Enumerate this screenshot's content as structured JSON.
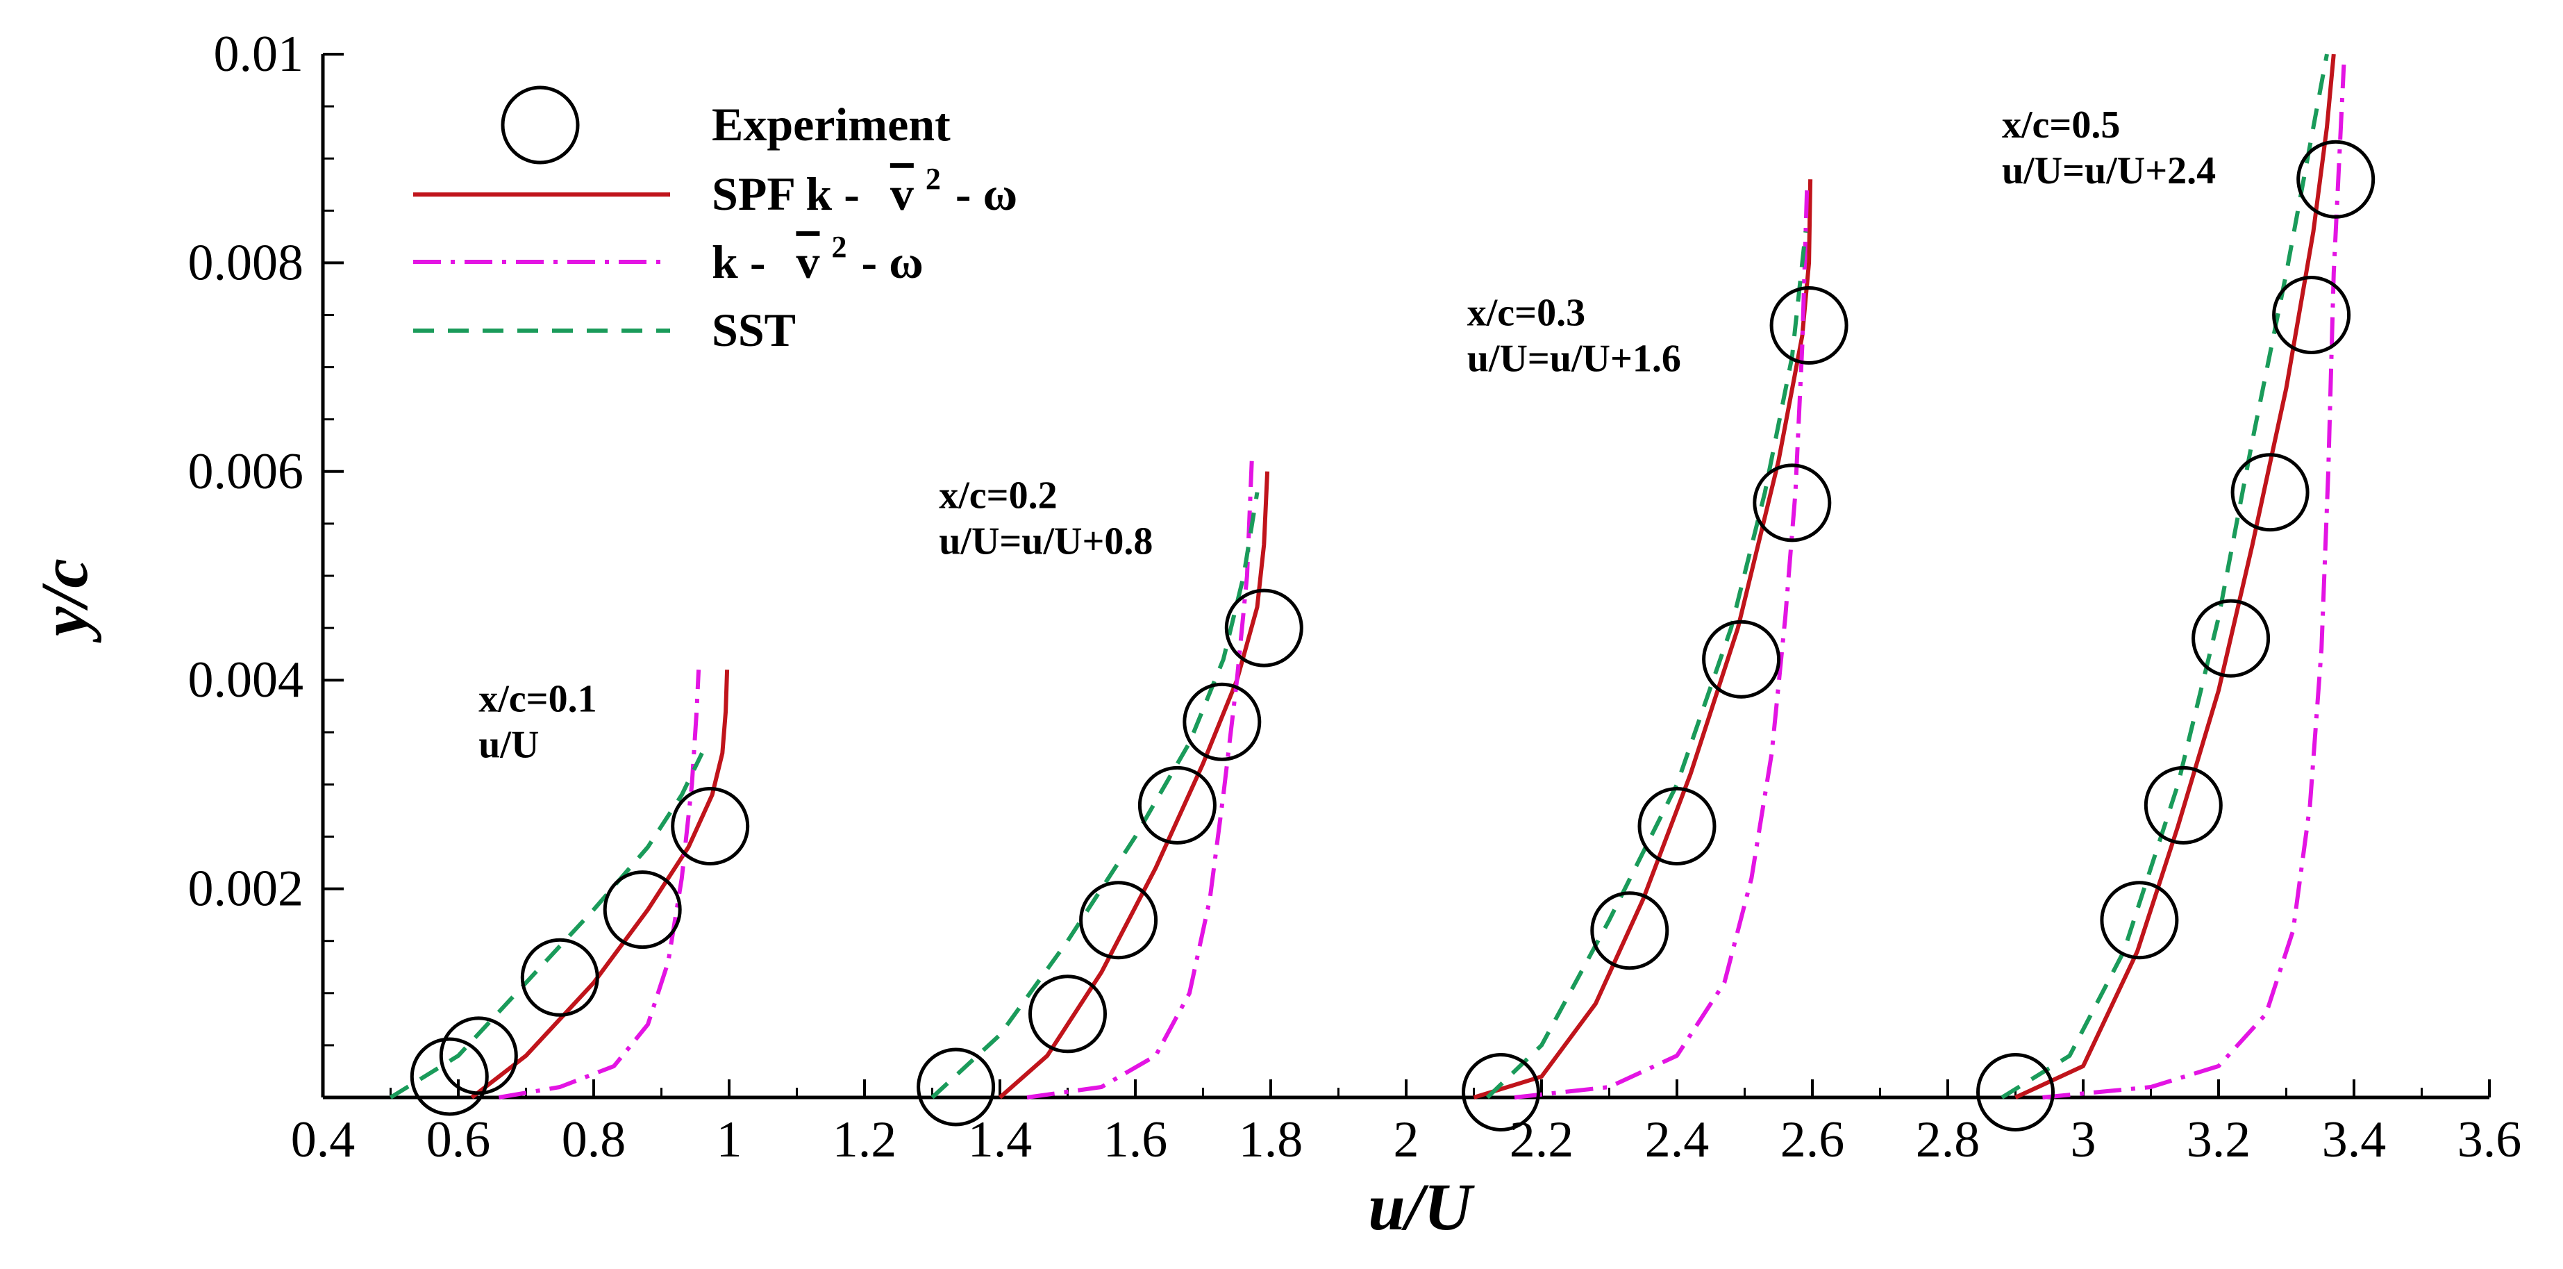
{
  "chart_data": {
    "type": "line",
    "xlabel": "u/U",
    "ylabel": "y/c",
    "xlim": [
      0.4,
      3.6
    ],
    "ylim": [
      0,
      0.01
    ],
    "xticks": [
      0.4,
      0.6,
      0.8,
      1,
      1.2,
      1.4,
      1.6,
      1.8,
      2,
      2.2,
      2.4,
      2.6,
      2.8,
      3,
      3.2,
      3.4,
      3.6
    ],
    "xtick_labels": [
      "0.4",
      "0.6",
      "0.8",
      "1",
      "1.2",
      "1.4",
      "1.6",
      "1.8",
      "2",
      "2.2",
      "2.4",
      "2.6",
      "2.8",
      "3",
      "3.2",
      "3.4",
      "3.6"
    ],
    "yticks": [
      0.002,
      0.004,
      0.006,
      0.008,
      0.01
    ],
    "ytick_labels": [
      "0.002",
      "0.004",
      "0.006",
      "0.008",
      "0.01"
    ],
    "grid": false,
    "legend": {
      "position": "top-left",
      "entries": [
        {
          "series": "Experiment",
          "label": "Experiment",
          "style": "circle-marker"
        },
        {
          "series": "SPF",
          "label_prefix": "SPF k - ",
          "label_v": "v",
          "label_sup": "2",
          "label_suffix": "- ω",
          "style": "solid",
          "color": "#c0141b"
        },
        {
          "series": "KV2W",
          "label_prefix": "k - ",
          "label_v": "v",
          "label_sup": "2",
          "label_suffix": "- ω",
          "style": "dashdot",
          "color": "#e314e3"
        },
        {
          "series": "SST",
          "label": "SST",
          "style": "dashed",
          "color": "#1a9b5a"
        }
      ]
    },
    "annotations": [
      {
        "id": "st1",
        "line1": "x/c=0.1",
        "line2": "u/U",
        "at": [
          0.63,
          0.0037
        ]
      },
      {
        "id": "st2",
        "line1": "x/c=0.2",
        "line2": "u/U=u/U+0.8",
        "at": [
          1.31,
          0.00565
        ]
      },
      {
        "id": "st3",
        "line1": "x/c=0.3",
        "line2": "u/U=u/U+1.6",
        "at": [
          2.09,
          0.0074
        ]
      },
      {
        "id": "st4",
        "line1": "x/c=0.5",
        "line2": "u/U=u/U+2.4",
        "at": [
          2.88,
          0.0092
        ]
      }
    ],
    "series": [
      {
        "name": "Experiment",
        "style": "circle-marker",
        "color": "#000000",
        "points": [
          [
            0.587,
            0.0002
          ],
          [
            0.63,
            0.0004
          ],
          [
            0.75,
            0.00115
          ],
          [
            0.872,
            0.0018
          ],
          [
            0.972,
            0.0026
          ],
          [
            1.335,
            0.0001
          ],
          [
            1.5,
            0.0008
          ],
          [
            1.575,
            0.0017
          ],
          [
            1.662,
            0.0028
          ],
          [
            1.728,
            0.0036
          ],
          [
            1.79,
            0.0045
          ],
          [
            2.14,
            5e-05
          ],
          [
            2.33,
            0.0016
          ],
          [
            2.4,
            0.0026
          ],
          [
            2.495,
            0.0042
          ],
          [
            2.57,
            0.0057
          ],
          [
            2.595,
            0.0074
          ],
          [
            2.9,
            5e-05
          ],
          [
            3.083,
            0.0017
          ],
          [
            3.148,
            0.0028
          ],
          [
            3.218,
            0.0044
          ],
          [
            3.276,
            0.0058
          ],
          [
            3.337,
            0.0075
          ],
          [
            3.373,
            0.0088
          ]
        ]
      },
      {
        "name": "SPF",
        "style": "solid",
        "color": "#c0141b",
        "curves": [
          [
            [
              0.62,
              0.0
            ],
            [
              0.7,
              0.0004
            ],
            [
              0.8,
              0.0011
            ],
            [
              0.88,
              0.0018
            ],
            [
              0.94,
              0.0024
            ],
            [
              0.975,
              0.0029
            ],
            [
              0.99,
              0.0033
            ],
            [
              0.995,
              0.0037
            ],
            [
              0.997,
              0.0041
            ]
          ],
          [
            [
              1.4,
              0.0
            ],
            [
              1.47,
              0.0004
            ],
            [
              1.55,
              0.0012
            ],
            [
              1.63,
              0.0022
            ],
            [
              1.7,
              0.0032
            ],
            [
              1.75,
              0.004
            ],
            [
              1.78,
              0.0047
            ],
            [
              1.79,
              0.0053
            ],
            [
              1.795,
              0.006
            ]
          ],
          [
            [
              2.1,
              0.0
            ],
            [
              2.2,
              0.0002
            ],
            [
              2.28,
              0.0009
            ],
            [
              2.35,
              0.0019
            ],
            [
              2.42,
              0.0031
            ],
            [
              2.49,
              0.0045
            ],
            [
              2.55,
              0.0061
            ],
            [
              2.585,
              0.0073
            ],
            [
              2.595,
              0.008
            ],
            [
              2.597,
              0.0088
            ]
          ],
          [
            [
              2.9,
              0.0
            ],
            [
              3.0,
              0.0003
            ],
            [
              3.08,
              0.0014
            ],
            [
              3.14,
              0.0026
            ],
            [
              3.2,
              0.0039
            ],
            [
              3.25,
              0.0053
            ],
            [
              3.3,
              0.0068
            ],
            [
              3.34,
              0.0083
            ],
            [
              3.36,
              0.0093
            ],
            [
              3.37,
              0.01
            ]
          ]
        ]
      },
      {
        "name": "KV2W",
        "style": "dashdot",
        "color": "#e314e3",
        "curves": [
          [
            [
              0.66,
              0.0
            ],
            [
              0.75,
              0.0001
            ],
            [
              0.83,
              0.0003
            ],
            [
              0.88,
              0.0007
            ],
            [
              0.91,
              0.0013
            ],
            [
              0.93,
              0.0021
            ],
            [
              0.945,
              0.003
            ],
            [
              0.952,
              0.0037
            ],
            [
              0.955,
              0.0041
            ]
          ],
          [
            [
              1.44,
              0.0
            ],
            [
              1.55,
              0.0001
            ],
            [
              1.63,
              0.0004
            ],
            [
              1.68,
              0.001
            ],
            [
              1.71,
              0.0019
            ],
            [
              1.73,
              0.0029
            ],
            [
              1.75,
              0.004
            ],
            [
              1.765,
              0.005
            ],
            [
              1.772,
              0.0061
            ]
          ],
          [
            [
              2.16,
              0.0
            ],
            [
              2.3,
              0.0001
            ],
            [
              2.4,
              0.0004
            ],
            [
              2.47,
              0.0011
            ],
            [
              2.51,
              0.0021
            ],
            [
              2.54,
              0.0033
            ],
            [
              2.56,
              0.0046
            ],
            [
              2.575,
              0.0058
            ],
            [
              2.585,
              0.0072
            ],
            [
              2.592,
              0.0087
            ]
          ],
          [
            [
              2.94,
              0.0
            ],
            [
              3.1,
              0.0001
            ],
            [
              3.2,
              0.0003
            ],
            [
              3.27,
              0.0008
            ],
            [
              3.31,
              0.0016
            ],
            [
              3.335,
              0.0028
            ],
            [
              3.352,
              0.0043
            ],
            [
              3.362,
              0.006
            ],
            [
              3.37,
              0.0079
            ],
            [
              3.385,
              0.0099
            ]
          ]
        ]
      },
      {
        "name": "SST",
        "style": "dashed",
        "color": "#1a9b5a",
        "curves": [
          [
            [
              0.5,
              0.0
            ],
            [
              0.6,
              0.0004
            ],
            [
              0.7,
              0.0011
            ],
            [
              0.8,
              0.0018
            ],
            [
              0.88,
              0.0024
            ],
            [
              0.93,
              0.0029
            ],
            [
              0.96,
              0.0033
            ]
          ],
          [
            [
              1.3,
              0.0
            ],
            [
              1.4,
              0.0006
            ],
            [
              1.5,
              0.0015
            ],
            [
              1.6,
              0.0025
            ],
            [
              1.68,
              0.0034
            ],
            [
              1.73,
              0.0042
            ],
            [
              1.76,
              0.005
            ],
            [
              1.78,
              0.0058
            ]
          ],
          [
            [
              2.12,
              0.0
            ],
            [
              2.2,
              0.0005
            ],
            [
              2.3,
              0.0017
            ],
            [
              2.4,
              0.003
            ],
            [
              2.48,
              0.0045
            ],
            [
              2.53,
              0.0058
            ],
            [
              2.57,
              0.0071
            ],
            [
              2.59,
              0.0083
            ]
          ],
          [
            [
              2.88,
              0.0
            ],
            [
              2.98,
              0.0004
            ],
            [
              3.06,
              0.0014
            ],
            [
              3.14,
              0.003
            ],
            [
              3.2,
              0.0046
            ],
            [
              3.25,
              0.0063
            ],
            [
              3.3,
              0.0079
            ],
            [
              3.34,
              0.0093
            ],
            [
              3.36,
              0.01
            ]
          ]
        ]
      }
    ]
  }
}
